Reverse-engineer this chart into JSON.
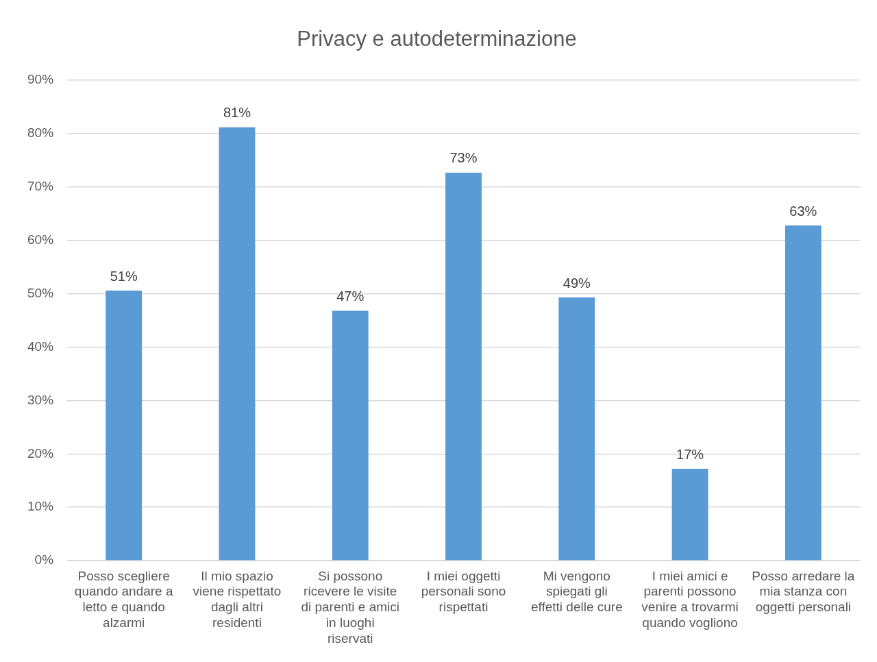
{
  "chart_data": {
    "type": "bar",
    "title": "Privacy e autodeterminazione",
    "categories": [
      "Posso scegliere quando andare a letto e quando alzarmi",
      "Il mio spazio viene rispettato dagli altri residenti",
      "Si possono ricevere le visite di parenti e amici in luoghi riservati",
      "I miei oggetti personali sono rispettati",
      "Mi vengono spiegati gli effetti delle cure",
      "I miei amici e parenti possono venire a trovarmi quando vogliono",
      "Posso arredare la mia stanza con oggetti personali"
    ],
    "values": [
      50.6,
      81.2,
      46.8,
      72.7,
      49.3,
      17.2,
      62.8
    ],
    "value_labels": [
      "51%",
      "81%",
      "47%",
      "73%",
      "49%",
      "17%",
      "63%"
    ],
    "color": "#5b9bd5",
    "ylim": [
      0,
      90
    ],
    "yticks": [
      {
        "value": 0,
        "label": "0%"
      },
      {
        "value": 10,
        "label": "10%"
      },
      {
        "value": 20,
        "label": "20%"
      },
      {
        "value": 30,
        "label": "30%"
      },
      {
        "value": 40,
        "label": "40%"
      },
      {
        "value": 50,
        "label": "50%"
      },
      {
        "value": 60,
        "label": "60%"
      },
      {
        "value": 70,
        "label": "70%"
      },
      {
        "value": 80,
        "label": "80%"
      },
      {
        "value": 90,
        "label": "90%"
      }
    ],
    "grid": "y",
    "legend": false
  }
}
